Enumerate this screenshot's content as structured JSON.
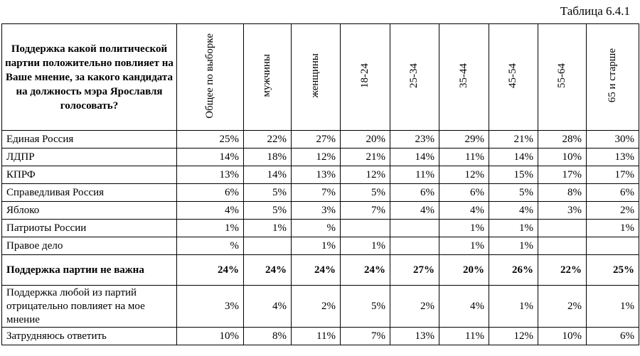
{
  "caption": "Таблица 6.4.1",
  "table": {
    "question": "Поддержка какой политической партии положительно повлияет на Ваше мнение, за какого кандидата на должность мэра Ярославля голосовать?",
    "columns": [
      "Общее по выборке",
      "мужчины",
      "женщины",
      "18-24",
      "25-34",
      "35-44",
      "45-54",
      "55-64",
      "65 и старше"
    ],
    "rows": [
      {
        "label": "Единая Россия",
        "values": [
          "25%",
          "22%",
          "27%",
          "20%",
          "23%",
          "29%",
          "21%",
          "28%",
          "30%"
        ],
        "bold": false
      },
      {
        "label": "ЛДПР",
        "values": [
          "14%",
          "18%",
          "12%",
          "21%",
          "14%",
          "11%",
          "14%",
          "10%",
          "13%"
        ],
        "bold": false
      },
      {
        "label": "КПРФ",
        "values": [
          "13%",
          "14%",
          "13%",
          "12%",
          "11%",
          "12%",
          "15%",
          "17%",
          "17%"
        ],
        "bold": false
      },
      {
        "label": "Справедливая Россия",
        "values": [
          "6%",
          "5%",
          "7%",
          "5%",
          "6%",
          "6%",
          "5%",
          "8%",
          "6%"
        ],
        "bold": false
      },
      {
        "label": "Яблоко",
        "values": [
          "4%",
          "5%",
          "3%",
          "7%",
          "4%",
          "4%",
          "4%",
          "3%",
          "2%"
        ],
        "bold": false
      },
      {
        "label": "Патриоты России",
        "values": [
          "1%",
          "1%",
          "%",
          "",
          "",
          "1%",
          "1%",
          "",
          "1%"
        ],
        "bold": false
      },
      {
        "label": "Правое дело",
        "values": [
          "%",
          "",
          "1%",
          "1%",
          "",
          "1%",
          "1%",
          "",
          ""
        ],
        "bold": false
      },
      {
        "label": "Поддержка партии не важна",
        "values": [
          "24%",
          "24%",
          "24%",
          "24%",
          "27%",
          "20%",
          "26%",
          "22%",
          "25%"
        ],
        "bold": true
      },
      {
        "label": "Поддержка любой из партий отрицательно повлияет на мое мнение",
        "values": [
          "3%",
          "4%",
          "2%",
          "5%",
          "2%",
          "4%",
          "1%",
          "2%",
          "1%"
        ],
        "bold": false
      },
      {
        "label": "Затрудняюсь ответить",
        "values": [
          "10%",
          "8%",
          "11%",
          "7%",
          "13%",
          "11%",
          "12%",
          "10%",
          "6%"
        ],
        "bold": false
      }
    ]
  }
}
